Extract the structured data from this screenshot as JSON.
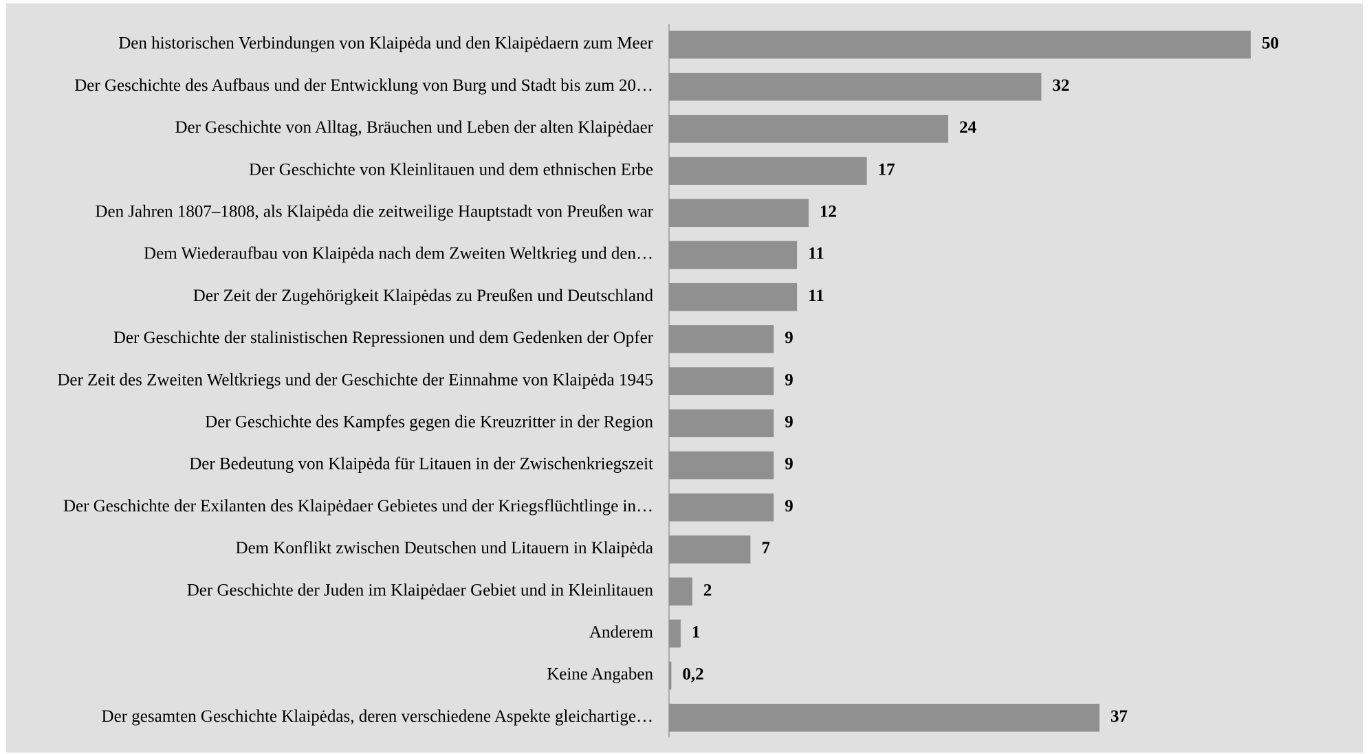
{
  "chart_data": {
    "type": "hbar",
    "categories": [
      "Den historischen Verbindungen von Klaipėda und den Klaipėdaern zum Meer",
      "Der Geschichte des Aufbaus und der Entwicklung von Burg und Stadt bis zum 20…",
      "Der Geschichte von Alltag, Bräuchen und Leben der alten Klaipėdaer",
      "Der Geschichte von Kleinlitauen und dem ethnischen Erbe",
      "Den Jahren 1807–1808, als Klaipėda die zeitweilige Hauptstadt von Preußen war",
      "Dem Wiederaufbau von Klaipėda nach dem Zweiten Weltkrieg und den…",
      "Der Zeit der Zugehörigkeit Klaipėdas zu Preußen und Deutschland",
      "Der Geschichte der stalinistischen Repressionen und dem Gedenken der Opfer",
      "Der Zeit des Zweiten Weltkriegs und der Geschichte der Einnahme von Klaipėda 1945",
      "Der Geschichte des Kampfes gegen die Kreuzritter in der Region",
      "Der Bedeutung von Klaipėda für Litauen in der Zwischenkriegszeit",
      "Der Geschichte der Exilanten des Klaipėdaer Gebietes und der Kriegsflüchtlinge in…",
      "Dem Konflikt zwischen Deutschen und Litauern in Klaipėda",
      "Der Geschichte der Juden im Klaipėdaer Gebiet und in Kleinlitauen",
      "Anderem",
      "Keine Angaben",
      "Der gesamten Geschichte Klaipėdas, deren verschiedene Aspekte gleichartige…"
    ],
    "values": [
      50,
      32,
      24,
      17,
      12,
      11,
      11,
      9,
      9,
      9,
      9,
      9,
      7,
      2,
      1,
      0.2,
      37
    ],
    "value_labels": [
      "50",
      "32",
      "24",
      "17",
      "12",
      "11",
      "11",
      "9",
      "9",
      "9",
      "9",
      "9",
      "7",
      "2",
      "1",
      "0,2",
      "37"
    ],
    "color": "#909090"
  }
}
